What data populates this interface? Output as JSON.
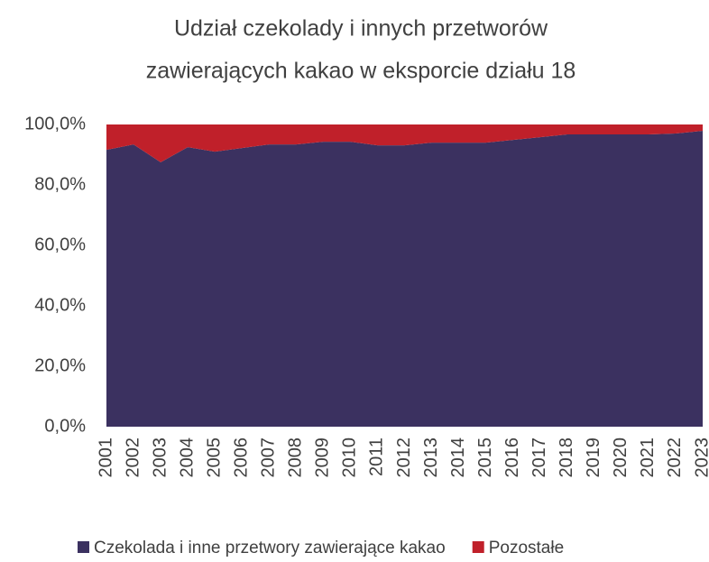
{
  "chart_data": {
    "type": "stacked_area",
    "title": [
      "Udział czekolady i innych przetworów",
      "zawierających kakao w eksporcie działu 18"
    ],
    "categories": [
      "2001",
      "2002",
      "2003",
      "2004",
      "2005",
      "2006",
      "2007",
      "2008",
      "2009",
      "2010",
      "2011",
      "2012",
      "2013",
      "2014",
      "2015",
      "2016",
      "2017",
      "2018",
      "2019",
      "2020",
      "2021",
      "2022",
      "2023"
    ],
    "series": [
      {
        "name": "Czekolada i inne przetwory zawierające kakao",
        "color": "#3b3160",
        "values": [
          91.6,
          93.4,
          87.5,
          92.5,
          91.0,
          92.2,
          93.4,
          93.4,
          94.3,
          94.3,
          93.1,
          93.1,
          94.0,
          94.0,
          94.0,
          94.9,
          95.8,
          96.7,
          96.7,
          96.7,
          96.7,
          97.0,
          97.9
        ]
      },
      {
        "name": "Pozostałe",
        "color": "#c0202a",
        "values": [
          8.4,
          6.6,
          12.5,
          7.5,
          9.0,
          7.8,
          6.6,
          6.6,
          5.7,
          5.7,
          6.9,
          6.9,
          6.0,
          6.0,
          6.0,
          5.1,
          4.2,
          3.3,
          3.3,
          3.3,
          3.3,
          3.0,
          2.1
        ]
      }
    ],
    "ylim": [
      0,
      100
    ],
    "yticks": [
      {
        "value": 0,
        "label": "0,0%"
      },
      {
        "value": 20,
        "label": "20,0%"
      },
      {
        "value": 40,
        "label": "40,0%"
      },
      {
        "value": 60,
        "label": "60,0%"
      },
      {
        "value": 80,
        "label": "80,0%"
      },
      {
        "value": 100,
        "label": "100,0%"
      }
    ],
    "legend": "bottom"
  }
}
